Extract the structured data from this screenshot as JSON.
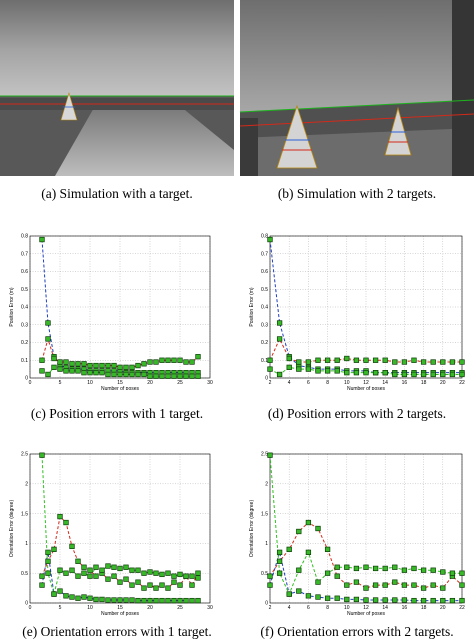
{
  "captions": {
    "a": "(a) Simulation with a target.",
    "b": "(b) Simulation with 2 targets.",
    "c": "(c) Position errors with 1 target.",
    "d": "(d) Position errors with 2 targets.",
    "e": "(e) Orientation errors with 1 target.",
    "f": "(f) Orientation errors with 2 targets."
  },
  "colors": {
    "series_blue": "#1f3fbf",
    "series_red": "#d62a1a",
    "series_green": "#2fc01e",
    "marker_fill": "#39b92a",
    "marker_edge": "#0b3d05"
  },
  "chart_data": [
    {
      "id": "c",
      "type": "line",
      "xlabel": "Number of poses",
      "ylabel": "Position Error (m)",
      "xlim": [
        0,
        30
      ],
      "ylim": [
        0,
        0.8
      ],
      "xticks": [
        0,
        5,
        10,
        15,
        20,
        25,
        30
      ],
      "yticks": [
        0,
        0.1,
        0.2,
        0.3,
        0.4,
        0.5,
        0.6,
        0.7,
        0.8
      ],
      "ytick_labels": [
        "0",
        "0.1",
        "0.2",
        "0.3",
        "0.4",
        "0.5",
        "0.6",
        "0.7",
        "0.8"
      ],
      "grid": true,
      "series": [
        {
          "color": "blue",
          "x": [
            2,
            3,
            4,
            5,
            6,
            7,
            8,
            9,
            10,
            11,
            12,
            13,
            14,
            15,
            16,
            17,
            18,
            19,
            20,
            21,
            22,
            23,
            24,
            25,
            26,
            27,
            28
          ],
          "y": [
            0.78,
            0.31,
            0.12,
            0.07,
            0.06,
            0.05,
            0.05,
            0.05,
            0.04,
            0.04,
            0.04,
            0.04,
            0.04,
            0.04,
            0.03,
            0.03,
            0.03,
            0.03,
            0.03,
            0.03,
            0.03,
            0.03,
            0.03,
            0.03,
            0.03,
            0.03,
            0.03
          ]
        },
        {
          "color": "red",
          "x": [
            2,
            3,
            4,
            5,
            6,
            7,
            8,
            9,
            10,
            11,
            12,
            13,
            14,
            15,
            16,
            17,
            18,
            19,
            20,
            21,
            22,
            23,
            24,
            25,
            26,
            27,
            28
          ],
          "y": [
            0.1,
            0.22,
            0.11,
            0.09,
            0.09,
            0.08,
            0.08,
            0.08,
            0.07,
            0.07,
            0.07,
            0.07,
            0.07,
            0.06,
            0.06,
            0.06,
            0.07,
            0.08,
            0.09,
            0.09,
            0.1,
            0.1,
            0.1,
            0.1,
            0.09,
            0.09,
            0.12
          ]
        },
        {
          "color": "green",
          "x": [
            2,
            3,
            4,
            5,
            6,
            7,
            8,
            9,
            10,
            11,
            12,
            13,
            14,
            15,
            16,
            17,
            18,
            19,
            20,
            21,
            22,
            23,
            24,
            25,
            26,
            27,
            28
          ],
          "y": [
            0.04,
            0.02,
            0.06,
            0.05,
            0.04,
            0.04,
            0.04,
            0.03,
            0.03,
            0.03,
            0.03,
            0.02,
            0.02,
            0.02,
            0.02,
            0.02,
            0.02,
            0.02,
            0.01,
            0.01,
            0.01,
            0.01,
            0.01,
            0.01,
            0.01,
            0.01,
            0.01
          ]
        }
      ]
    },
    {
      "id": "d",
      "type": "line",
      "xlabel": "Number of poses",
      "ylabel": "Position Error (m)",
      "xlim": [
        2,
        22
      ],
      "ylim": [
        0,
        0.8
      ],
      "xticks": [
        2,
        4,
        6,
        8,
        10,
        12,
        14,
        16,
        18,
        20,
        22
      ],
      "yticks": [
        0,
        0.1,
        0.2,
        0.3,
        0.4,
        0.5,
        0.6,
        0.7,
        0.8
      ],
      "ytick_labels": [
        "0",
        "0.1",
        "0.2",
        "0.3",
        "0.4",
        "0.5",
        "0.6",
        "0.7",
        "0.8"
      ],
      "grid": true,
      "series": [
        {
          "color": "blue",
          "x": [
            2,
            3,
            4,
            5,
            6,
            7,
            8,
            9,
            10,
            11,
            12,
            13,
            14,
            15,
            16,
            17,
            18,
            19,
            20,
            21,
            22
          ],
          "y": [
            0.78,
            0.31,
            0.12,
            0.07,
            0.06,
            0.05,
            0.05,
            0.05,
            0.04,
            0.04,
            0.04,
            0.03,
            0.03,
            0.03,
            0.03,
            0.03,
            0.03,
            0.03,
            0.03,
            0.03,
            0.03
          ]
        },
        {
          "color": "red",
          "x": [
            2,
            3,
            4,
            5,
            6,
            7,
            8,
            9,
            10,
            11,
            12,
            13,
            14,
            15,
            16,
            17,
            18,
            19,
            20,
            21,
            22
          ],
          "y": [
            0.1,
            0.22,
            0.11,
            0.09,
            0.09,
            0.1,
            0.1,
            0.1,
            0.11,
            0.1,
            0.1,
            0.1,
            0.1,
            0.09,
            0.09,
            0.1,
            0.09,
            0.09,
            0.09,
            0.09,
            0.09
          ]
        },
        {
          "color": "green",
          "x": [
            2,
            3,
            4,
            5,
            6,
            7,
            8,
            9,
            10,
            11,
            12,
            13,
            14,
            15,
            16,
            17,
            18,
            19,
            20,
            21,
            22
          ],
          "y": [
            0.05,
            0.02,
            0.06,
            0.05,
            0.05,
            0.04,
            0.04,
            0.04,
            0.03,
            0.03,
            0.03,
            0.03,
            0.03,
            0.02,
            0.02,
            0.02,
            0.02,
            0.02,
            0.02,
            0.02,
            0.02
          ]
        }
      ]
    },
    {
      "id": "e",
      "type": "line",
      "xlabel": "Number of poses",
      "ylabel": "Orientation Error (degree)",
      "xlim": [
        0,
        30
      ],
      "ylim": [
        0,
        2.5
      ],
      "xticks": [
        0,
        5,
        10,
        15,
        20,
        25,
        30
      ],
      "yticks": [
        0,
        0.5,
        1,
        1.5,
        2,
        2.5
      ],
      "ytick_labels": [
        "0",
        "0.5",
        "1",
        "1.5",
        "2",
        "2.5"
      ],
      "grid": true,
      "series": [
        {
          "color": "blue",
          "x": [
            2,
            3,
            4,
            5,
            6,
            7,
            8,
            9,
            10,
            11,
            12,
            13,
            14,
            15,
            16,
            17,
            18,
            19,
            20,
            21,
            22,
            23,
            24,
            25,
            26,
            27,
            28
          ],
          "y": [
            0.3,
            0.85,
            0.15,
            0.2,
            0.12,
            0.1,
            0.08,
            0.1,
            0.08,
            0.06,
            0.06,
            0.05,
            0.05,
            0.05,
            0.05,
            0.05,
            0.04,
            0.04,
            0.04,
            0.04,
            0.04,
            0.04,
            0.04,
            0.04,
            0.04,
            0.04,
            0.04
          ]
        },
        {
          "color": "red",
          "x": [
            2,
            3,
            4,
            5,
            6,
            7,
            8,
            9,
            10,
            11,
            12,
            13,
            14,
            15,
            16,
            17,
            18,
            19,
            20,
            21,
            22,
            23,
            24,
            25,
            26,
            27,
            28
          ],
          "y": [
            0.45,
            0.7,
            0.9,
            1.45,
            1.35,
            0.95,
            0.7,
            0.6,
            0.55,
            0.45,
            0.5,
            0.4,
            0.45,
            0.35,
            0.4,
            0.3,
            0.35,
            0.25,
            0.3,
            0.25,
            0.3,
            0.25,
            0.35,
            0.3,
            0.45,
            0.3,
            0.5
          ]
        },
        {
          "color": "green",
          "x": [
            2,
            3,
            4,
            5,
            6,
            7,
            8,
            9,
            10,
            11,
            12,
            13,
            14,
            15,
            16,
            17,
            18,
            19,
            20,
            21,
            22,
            23,
            24,
            25,
            26,
            27,
            28
          ],
          "y": [
            2.48,
            0.5,
            0.15,
            0.55,
            0.5,
            0.55,
            0.45,
            0.5,
            0.45,
            0.6,
            0.55,
            0.62,
            0.6,
            0.58,
            0.6,
            0.55,
            0.55,
            0.5,
            0.52,
            0.5,
            0.48,
            0.5,
            0.45,
            0.48,
            0.45,
            0.45,
            0.42
          ]
        }
      ]
    },
    {
      "id": "f",
      "type": "line",
      "xlabel": "Number of poses",
      "ylabel": "Orientation Error (degree)",
      "xlim": [
        2,
        22
      ],
      "ylim": [
        0,
        2.5
      ],
      "xticks": [
        2,
        4,
        6,
        8,
        10,
        12,
        14,
        16,
        18,
        20,
        22
      ],
      "yticks": [
        0,
        0.5,
        1,
        1.5,
        2,
        2.5
      ],
      "ytick_labels": [
        "0",
        "0.5",
        "1",
        "1.5",
        "2",
        "2.5"
      ],
      "grid": true,
      "series": [
        {
          "color": "blue",
          "x": [
            2,
            3,
            4,
            5,
            6,
            7,
            8,
            9,
            10,
            11,
            12,
            13,
            14,
            15,
            16,
            17,
            18,
            19,
            20,
            21,
            22
          ],
          "y": [
            0.3,
            0.85,
            0.15,
            0.2,
            0.12,
            0.1,
            0.08,
            0.08,
            0.06,
            0.06,
            0.05,
            0.05,
            0.05,
            0.05,
            0.05,
            0.04,
            0.04,
            0.04,
            0.04,
            0.04,
            0.04
          ]
        },
        {
          "color": "red",
          "x": [
            2,
            3,
            4,
            5,
            6,
            7,
            8,
            9,
            10,
            11,
            12,
            13,
            14,
            15,
            16,
            17,
            18,
            19,
            20,
            21,
            22
          ],
          "y": [
            0.45,
            0.7,
            0.9,
            1.2,
            1.35,
            1.25,
            0.9,
            0.45,
            0.3,
            0.35,
            0.25,
            0.3,
            0.3,
            0.35,
            0.3,
            0.3,
            0.25,
            0.3,
            0.25,
            0.45,
            0.3
          ]
        },
        {
          "color": "green",
          "x": [
            2,
            3,
            4,
            5,
            6,
            7,
            8,
            9,
            10,
            11,
            12,
            13,
            14,
            15,
            16,
            17,
            18,
            19,
            20,
            21,
            22
          ],
          "y": [
            2.48,
            0.5,
            0.15,
            0.55,
            0.85,
            0.35,
            0.5,
            0.6,
            0.6,
            0.58,
            0.6,
            0.58,
            0.58,
            0.6,
            0.55,
            0.58,
            0.55,
            0.55,
            0.52,
            0.5,
            0.5
          ]
        }
      ]
    }
  ]
}
